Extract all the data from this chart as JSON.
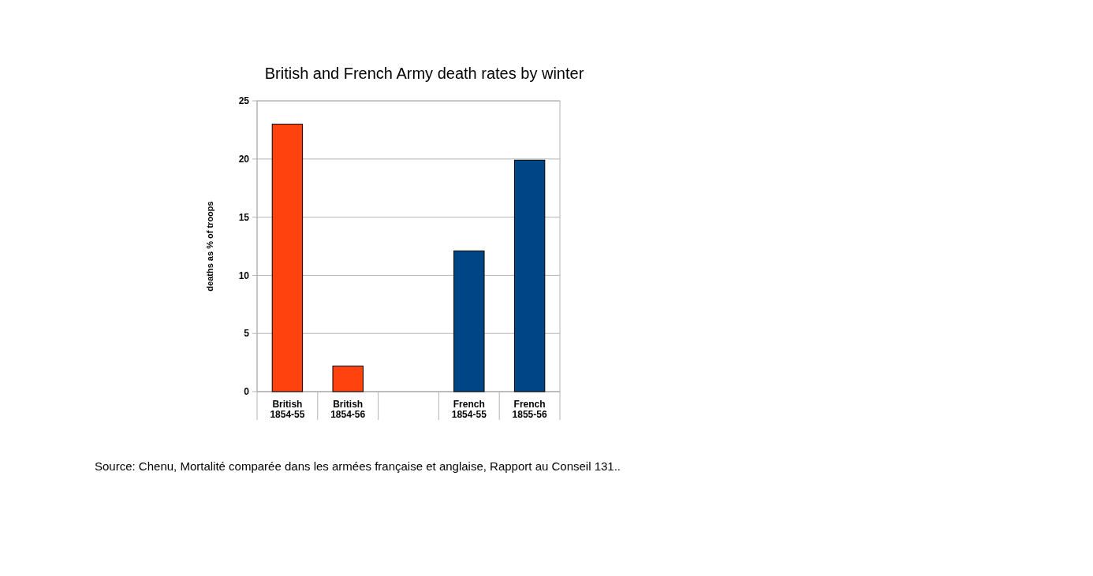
{
  "chart_data": {
    "type": "bar",
    "title": "British and French Army death rates by winter",
    "ylabel": "deaths as % of troops",
    "categories": [
      "British\n1854-55",
      "British\n1854-56",
      null,
      "French\n1854-55",
      "French\n1855-56"
    ],
    "values": [
      23,
      2.2,
      null,
      12.1,
      19.9
    ],
    "colors": [
      "#ff420e",
      "#ff420e",
      null,
      "#004586",
      "#004586"
    ],
    "ylim": [
      0,
      25
    ],
    "yticks": [
      0,
      5,
      10,
      15,
      20,
      25
    ],
    "grid": "y",
    "annotations": [
      "Source: Chenu, Mortalité comparée dans les armées française et anglaise, Rapport au Conseil 131.."
    ]
  }
}
